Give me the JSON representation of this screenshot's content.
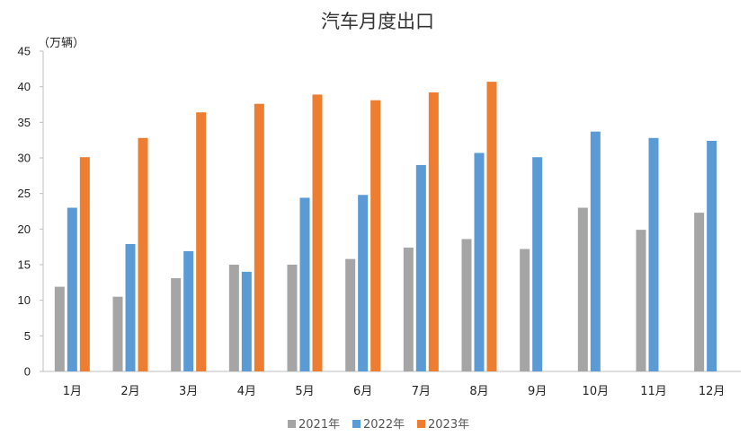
{
  "chart_data": {
    "type": "bar",
    "title": "汽车月度出口",
    "y_unit": "（万辆）",
    "categories": [
      "1月",
      "2月",
      "3月",
      "4月",
      "5月",
      "6月",
      "7月",
      "8月",
      "9月",
      "10月",
      "11月",
      "12月"
    ],
    "series": [
      {
        "name": "2021年",
        "color": "#a5a5a5",
        "values": [
          11.9,
          10.5,
          13.1,
          15.0,
          15.0,
          15.8,
          17.4,
          18.6,
          17.2,
          23.0,
          19.9,
          22.3
        ]
      },
      {
        "name": "2022年",
        "color": "#5b9bd5",
        "values": [
          23.0,
          17.9,
          16.9,
          14.0,
          24.4,
          24.8,
          29.0,
          30.7,
          30.1,
          33.7,
          32.8,
          32.4
        ]
      },
      {
        "name": "2023年",
        "color": "#ed7d31",
        "values": [
          30.1,
          32.8,
          36.4,
          37.6,
          38.9,
          38.1,
          39.2,
          40.7,
          null,
          null,
          null,
          null
        ]
      }
    ],
    "ylim": [
      0,
      45
    ],
    "yticks": [
      0,
      5,
      10,
      15,
      20,
      25,
      30,
      35,
      40,
      45
    ],
    "grid": false,
    "legend": "bottom"
  }
}
